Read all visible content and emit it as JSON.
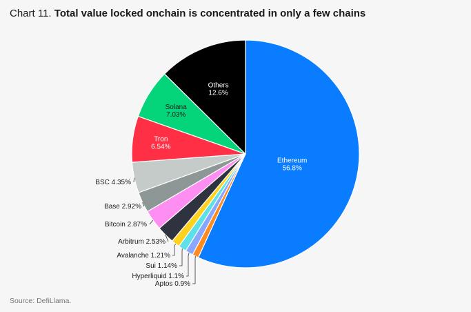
{
  "header": {
    "prefix": "Chart 11.",
    "title": "Total value locked onchain is concentrated in only a few chains"
  },
  "footer": {
    "source": "Source: DefiLlama."
  },
  "chart_data": {
    "type": "pie",
    "title": "Total value locked onchain is concentrated in only a few chains",
    "unit": "%",
    "slices": [
      {
        "label": "Ethereum",
        "value": 56.8,
        "display": "56.8%",
        "color": "#0a7cff",
        "label_mode": "inside",
        "text_color": "#ffffff"
      },
      {
        "label": "Aptos",
        "value": 0.9,
        "display": "0.9%",
        "color": "#ff8a1f",
        "label_mode": "outside"
      },
      {
        "label": "Hyperliquid",
        "value": 1.1,
        "display": "1.1%",
        "color": "#8aa7ff",
        "label_mode": "outside"
      },
      {
        "label": "Sui",
        "value": 1.14,
        "display": "1.14%",
        "color": "#5ee0e8",
        "label_mode": "outside"
      },
      {
        "label": "Avalanche",
        "value": 1.21,
        "display": "1.21%",
        "color": "#ffd21f",
        "label_mode": "outside"
      },
      {
        "label": "Arbitrum",
        "value": 2.53,
        "display": "2.53%",
        "color": "#2f3340",
        "label_mode": "outside"
      },
      {
        "label": "Bitcoin",
        "value": 2.87,
        "display": "2.87%",
        "color": "#ff8ef2",
        "label_mode": "outside"
      },
      {
        "label": "Base",
        "value": 2.92,
        "display": "2.92%",
        "color": "#8c9796",
        "label_mode": "outside"
      },
      {
        "label": "BSC",
        "value": 4.35,
        "display": "4.35%",
        "color": "#c5cbc8",
        "label_mode": "outside"
      },
      {
        "label": "Tron",
        "value": 6.54,
        "display": "6.54%",
        "color": "#ff3045",
        "label_mode": "inside",
        "text_color": "#ffffff"
      },
      {
        "label": "Solana",
        "value": 7.03,
        "display": "7.03%",
        "color": "#05d57a",
        "label_mode": "inside",
        "text_color": "#1a1a1a"
      },
      {
        "label": "Others",
        "value": 12.6,
        "display": "12.6%",
        "color": "#000000",
        "label_mode": "inside",
        "text_color": "#ffffff"
      }
    ]
  }
}
